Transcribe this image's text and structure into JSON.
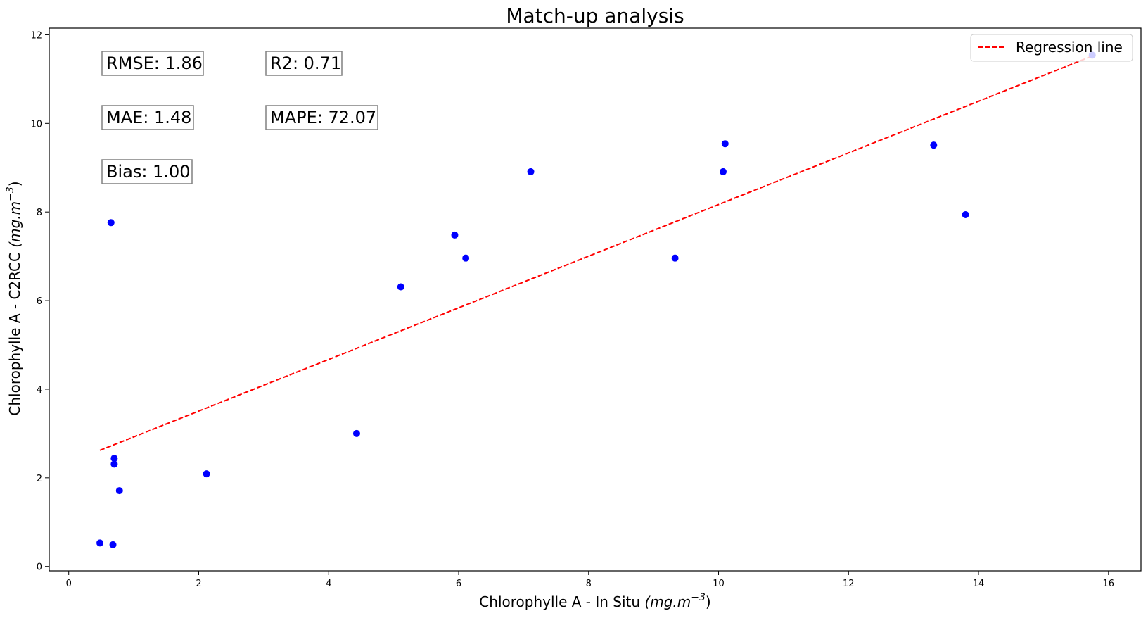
{
  "chart_data": {
    "type": "scatter",
    "title": "Match-up analysis",
    "xlabel_main": "Chlorophylle A - In Situ ",
    "xlabel_unit": "(mg.m",
    "xlabel_exp": "−3",
    "xlabel_close": ")",
    "ylabel_main": "Chlorophylle A - C2RCC ",
    "ylabel_unit": "(mg.m",
    "ylabel_exp": "−3",
    "ylabel_close": ")",
    "xlim": [
      -0.3,
      16.5
    ],
    "ylim": [
      -0.1,
      12.15
    ],
    "xticks": [
      0,
      2,
      4,
      6,
      8,
      10,
      12,
      14,
      16
    ],
    "yticks": [
      0,
      2,
      4,
      6,
      8,
      10,
      12
    ],
    "grid": false,
    "point_color": "#0000ff",
    "line_color": "#ff0000",
    "series": [
      {
        "kind": "points",
        "x": [
          0.48,
          0.65,
          0.68,
          0.7,
          0.7,
          0.78,
          2.12,
          4.43,
          5.11,
          5.94,
          6.11,
          7.11,
          9.33,
          10.07,
          10.1,
          13.31,
          13.8,
          15.75
        ],
        "y": [
          0.53,
          7.76,
          0.49,
          2.44,
          2.31,
          1.71,
          2.09,
          3.0,
          6.31,
          7.48,
          6.96,
          8.91,
          6.96,
          8.91,
          9.54,
          9.51,
          7.94,
          11.54
        ]
      },
      {
        "kind": "line",
        "name": "Regression line",
        "x": [
          0.48,
          15.75
        ],
        "y": [
          2.62,
          11.52
        ]
      }
    ],
    "legend": {
      "position": "top-right",
      "entries": [
        "Regression line"
      ]
    },
    "annotations": [
      {
        "id": "rmse",
        "label": "RMSE: 1.86"
      },
      {
        "id": "r2",
        "label": "R2: 0.71"
      },
      {
        "id": "mae",
        "label": "MAE: 1.48"
      },
      {
        "id": "mape",
        "label": "MAPE: 72.07"
      },
      {
        "id": "bias",
        "label": "Bias: 1.00"
      }
    ]
  }
}
